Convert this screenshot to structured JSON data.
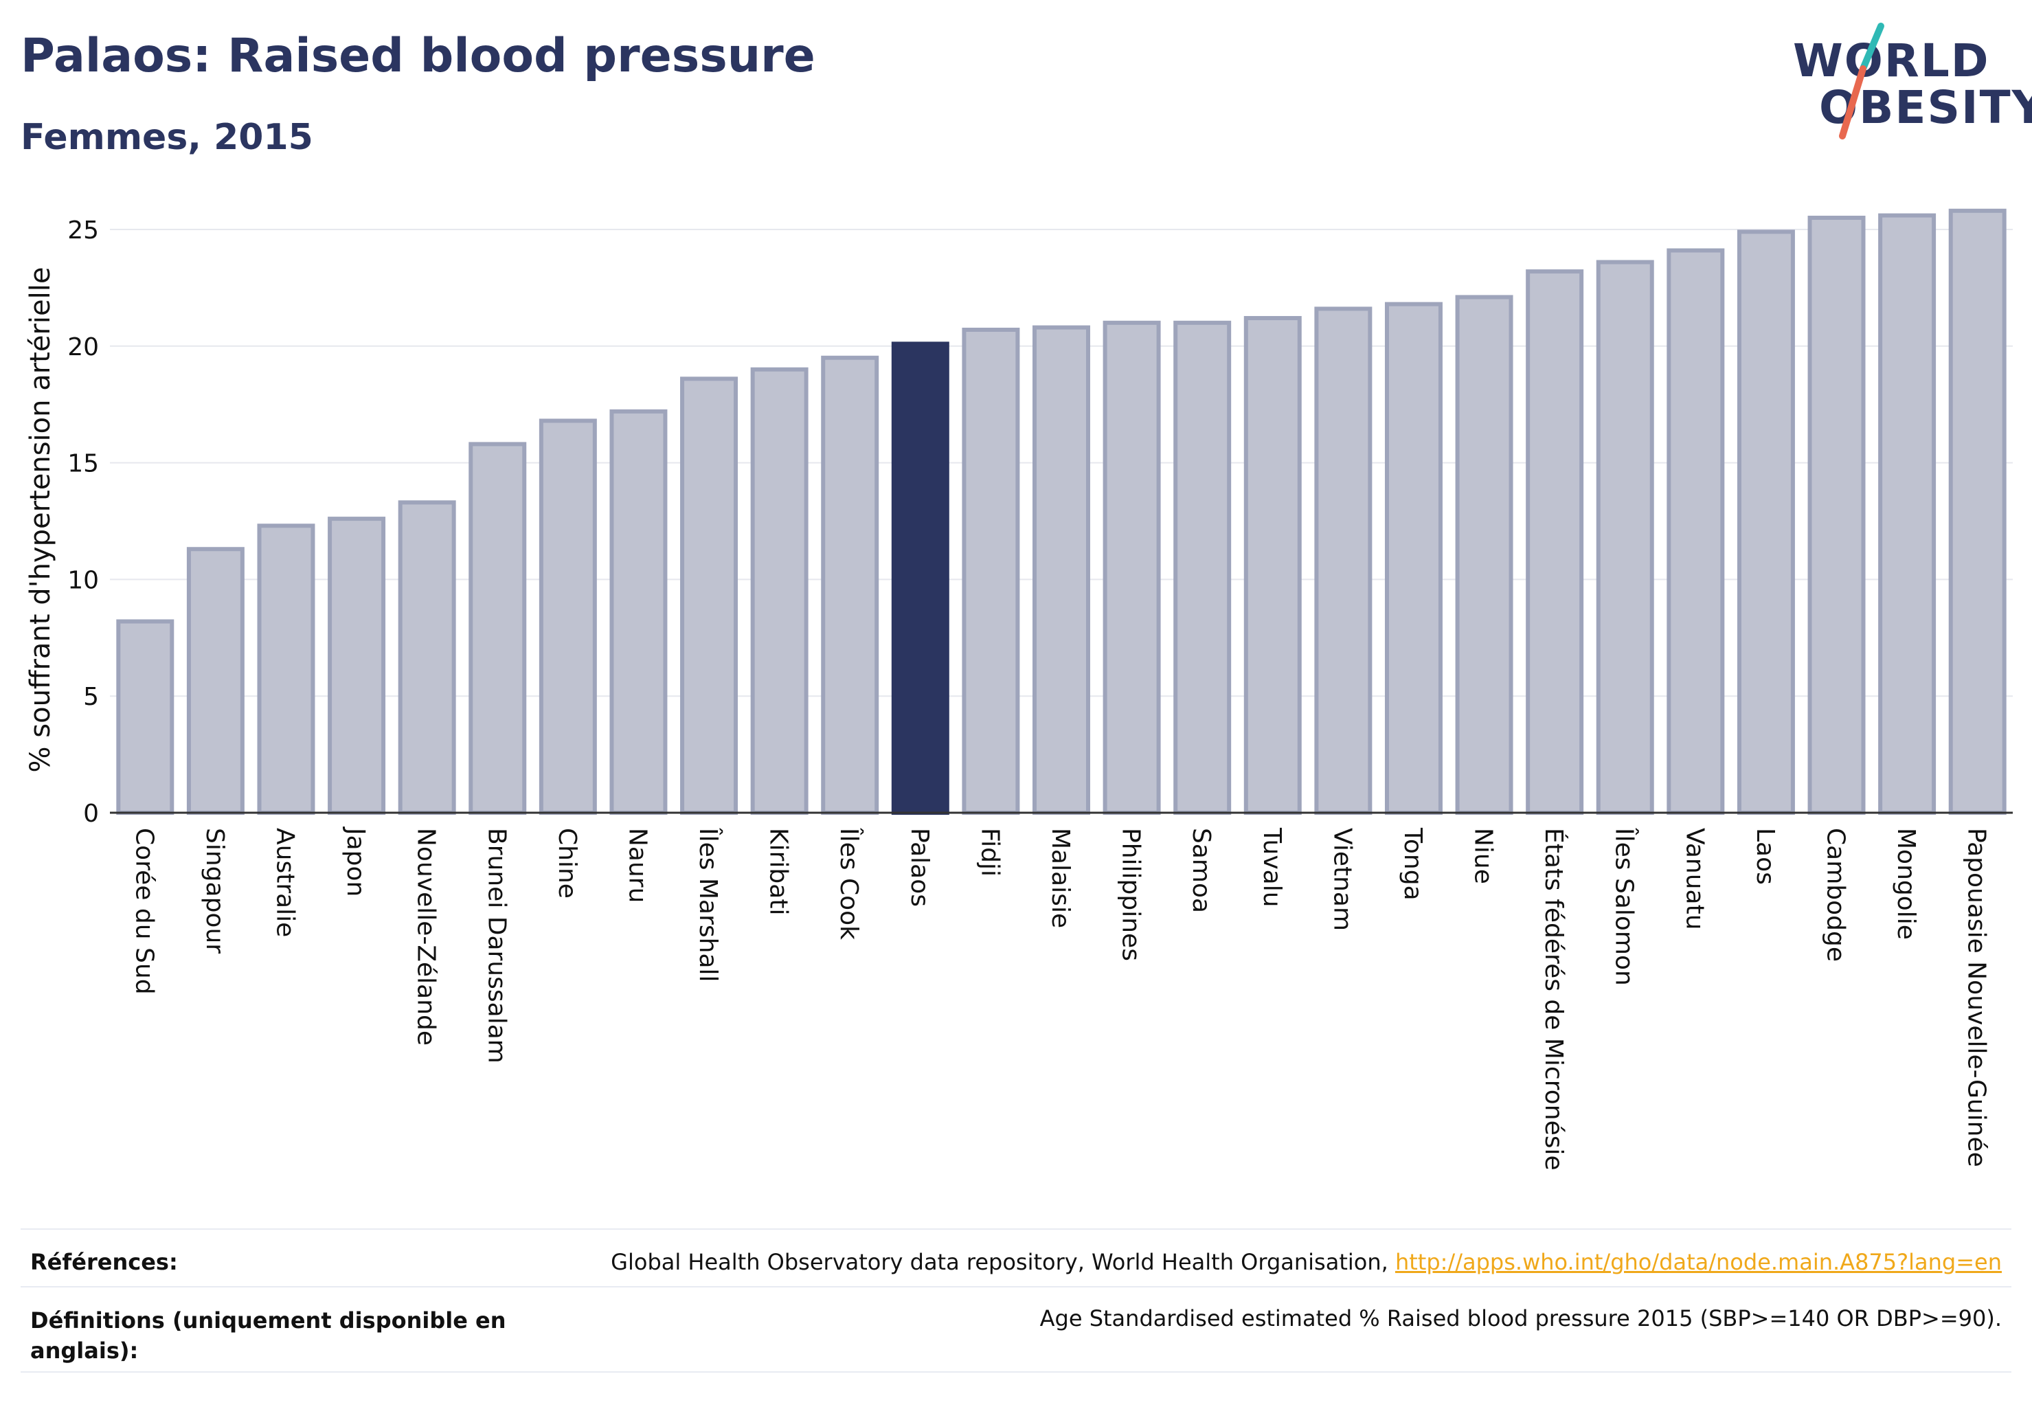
{
  "header": {
    "title": "Palaos: Raised blood pressure",
    "subtitle": "Femmes, 2015"
  },
  "logo": {
    "line1": "WORLD",
    "line2": "OBESITY",
    "colors": {
      "text": "#2b3560",
      "slash_teal": "#2fb9b5",
      "slash_red": "#e8684f"
    }
  },
  "chart_data": {
    "type": "bar",
    "title": "Palaos: Raised blood pressure",
    "subtitle": "Femmes, 2015",
    "ylabel": "% souffrant d'hypertension artérielle",
    "xlabel": "",
    "ylim": [
      0,
      26
    ],
    "yticks": [
      0,
      5,
      10,
      15,
      20,
      25
    ],
    "grid": true,
    "highlight": "Palaos",
    "colors": {
      "bar": "#bfc2d0",
      "bar_border": "#9ea4bb",
      "highlight": "#2b3560",
      "grid": "#e6e8ee"
    },
    "categories": [
      "Corée du Sud",
      "Singapour",
      "Australie",
      "Japon",
      "Nouvelle-Zélande",
      "Brunei Darussalam",
      "Chine",
      "Nauru",
      "Îles Marshall",
      "Kiribati",
      "Îles Cook",
      "Palaos",
      "Fidji",
      "Malaisie",
      "Philippines",
      "Samoa",
      "Tuvalu",
      "Vietnam",
      "Tonga",
      "Niue",
      "États fédérés de Micronésie",
      "Îles Salomon",
      "Vanuatu",
      "Laos",
      "Cambodge",
      "Mongolie",
      "Papouasie Nouvelle-Guinée"
    ],
    "values": [
      8.2,
      11.3,
      12.3,
      12.6,
      13.3,
      15.8,
      16.8,
      17.2,
      18.6,
      19.0,
      19.5,
      20.1,
      20.7,
      20.8,
      21.0,
      21.0,
      21.2,
      21.6,
      21.8,
      22.1,
      23.2,
      23.6,
      24.1,
      24.9,
      25.5,
      25.6,
      25.8
    ]
  },
  "footer": {
    "references_label": "Références:",
    "references_text": "Global Health Observatory data repository, World Health Organisation, ",
    "references_link": "http://apps.who.int/gho/data/node.main.A875?lang=en",
    "definitions_label_line1": "Définitions (uniquement disponible en",
    "definitions_label_line2": "anglais):",
    "definitions_text": "Age Standardised estimated % Raised blood pressure 2015 (SBP>=140 OR DBP>=90)."
  }
}
